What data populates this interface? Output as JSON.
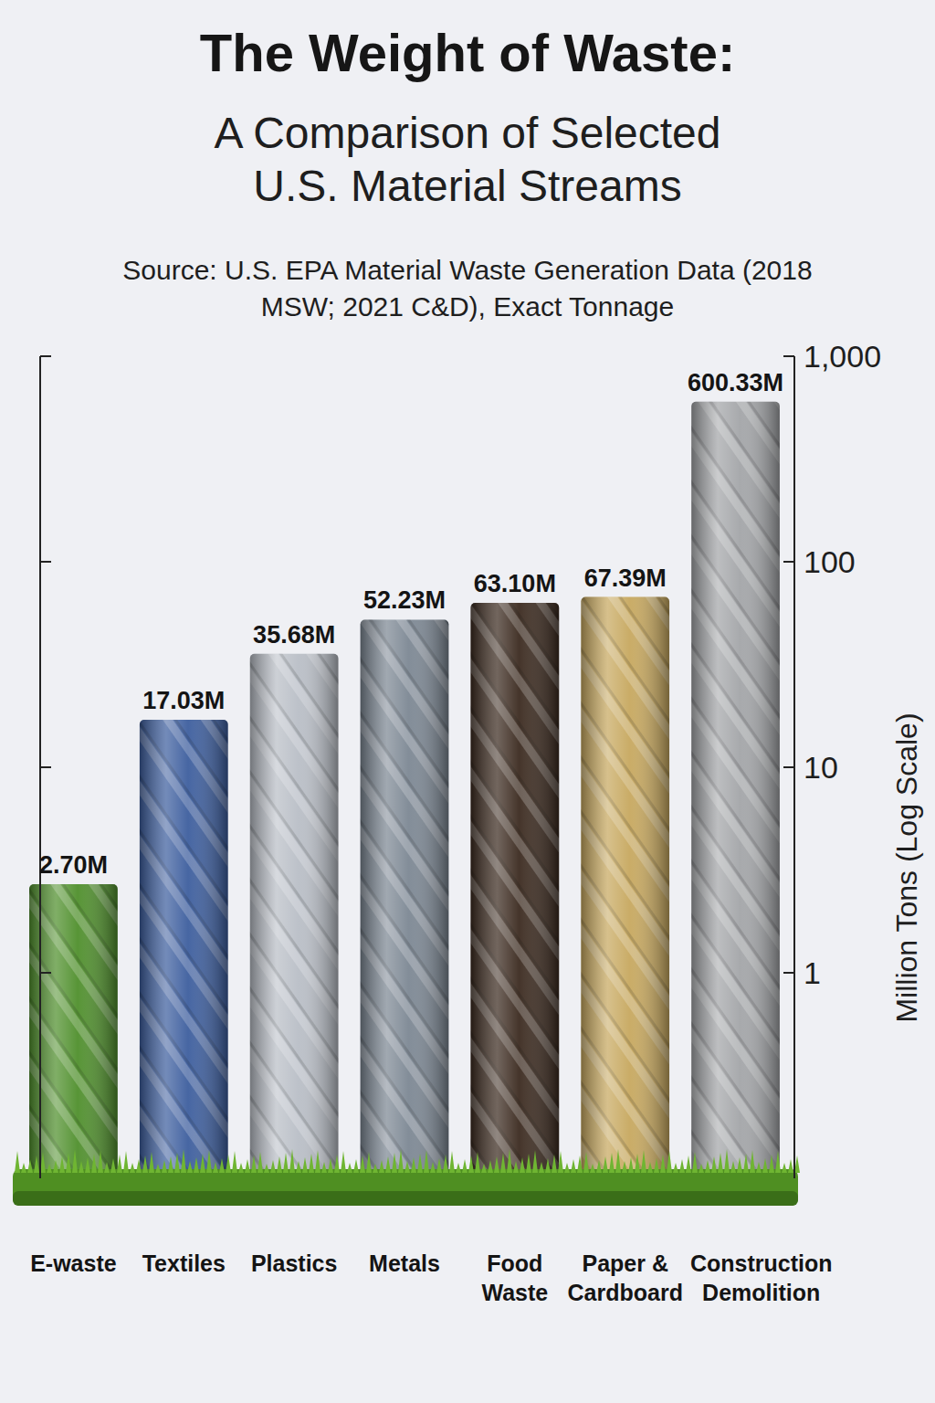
{
  "chart_data": {
    "type": "bar",
    "title": "The Weight of Waste:",
    "subtitle": "A Comparison of Selected U.S. Material Streams",
    "source": "Source: U.S. EPA Material Waste Generation Data (2018 MSW; 2021 C&D), Exact Tonnage",
    "categories": [
      "E-waste",
      "Textiles",
      "Plastics",
      "Metals",
      "Food Waste",
      "Paper & Cardboard",
      "Construction Demolition"
    ],
    "values": [
      2.7,
      17.03,
      35.68,
      52.23,
      63.1,
      67.39,
      600.33
    ],
    "value_labels": [
      "2.70M",
      "17.03M",
      "35.68M",
      "52.23M",
      "63.10M",
      "67.39M",
      "600.33M"
    ],
    "colors": [
      "#4f8f2c",
      "#3d5e9e",
      "#b9bec6",
      "#7c8793",
      "#3b2a1f",
      "#c7a85f",
      "#a3a5a8"
    ],
    "y_label": "Million Tons (Log Scale)",
    "ylim": [
      0.1,
      1000
    ],
    "yticks": [
      1,
      10,
      100,
      {
        "value": 1000,
        "label": "1,000"
      }
    ],
    "log": "y",
    "grid": false,
    "data_labels": true
  }
}
